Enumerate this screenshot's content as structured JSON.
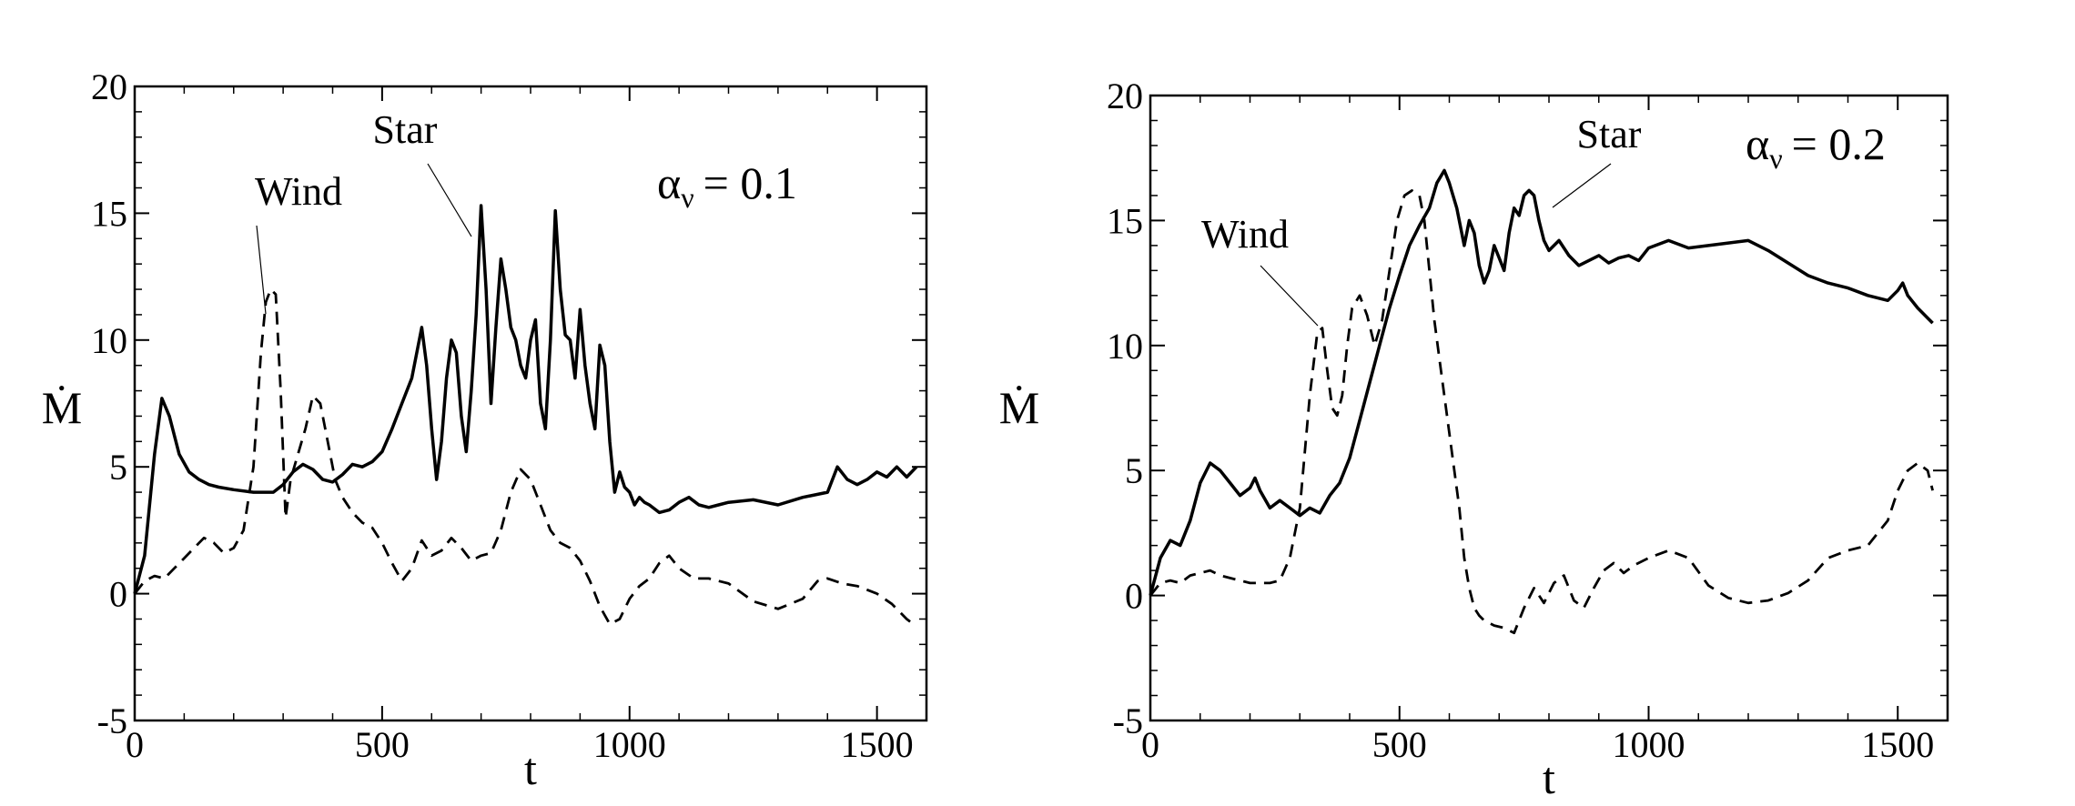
{
  "chart_data": [
    {
      "type": "line",
      "panel": "left",
      "xlabel": "t",
      "ylabel": "Ṁ",
      "xlim": [
        0,
        1600
      ],
      "ylim": [
        -5,
        20
      ],
      "xticks": [
        0,
        500,
        1000,
        1500
      ],
      "xtick_labels": [
        "0",
        "500",
        "1000",
        "1500"
      ],
      "yticks": [
        -5,
        0,
        5,
        10,
        15,
        20
      ],
      "ytick_labels": [
        "-5",
        "0",
        "5",
        "10",
        "15",
        "20"
      ],
      "parameter_label": {
        "symbol": "α",
        "subscript": "ν",
        "text": "=  0.1"
      },
      "grid": false,
      "series": [
        {
          "name": "Star",
          "style": "solid",
          "x": [
            0,
            20,
            40,
            55,
            70,
            90,
            110,
            130,
            150,
            170,
            200,
            240,
            280,
            300,
            320,
            340,
            360,
            380,
            400,
            420,
            440,
            460,
            480,
            500,
            520,
            540,
            560,
            580,
            590,
            600,
            610,
            620,
            630,
            640,
            650,
            660,
            670,
            680,
            690,
            700,
            710,
            720,
            730,
            740,
            750,
            760,
            770,
            780,
            790,
            800,
            810,
            820,
            830,
            840,
            850,
            860,
            870,
            880,
            890,
            900,
            910,
            920,
            930,
            940,
            950,
            960,
            970,
            980,
            990,
            1000,
            1010,
            1020,
            1030,
            1040,
            1060,
            1080,
            1100,
            1120,
            1140,
            1160,
            1180,
            1200,
            1250,
            1300,
            1350,
            1400,
            1420,
            1440,
            1460,
            1480,
            1500,
            1520,
            1540,
            1560,
            1580
          ],
          "y": [
            0,
            1.5,
            5.5,
            7.7,
            7.0,
            5.5,
            4.8,
            4.5,
            4.3,
            4.2,
            4.1,
            4.0,
            4.0,
            4.3,
            4.8,
            5.1,
            4.9,
            4.5,
            4.4,
            4.7,
            5.1,
            5.0,
            5.2,
            5.6,
            6.5,
            7.5,
            8.5,
            10.5,
            9.0,
            6.5,
            4.5,
            6.0,
            8.5,
            10.0,
            9.5,
            7.0,
            5.6,
            8.0,
            11.0,
            15.3,
            12.0,
            7.5,
            10.5,
            13.2,
            12.0,
            10.5,
            10.0,
            9.0,
            8.5,
            10.0,
            10.8,
            7.5,
            6.5,
            10.0,
            15.1,
            12.0,
            10.2,
            10.0,
            8.5,
            11.2,
            9.0,
            7.5,
            6.5,
            9.8,
            9.0,
            6.0,
            4.0,
            4.8,
            4.2,
            4.0,
            3.5,
            3.8,
            3.6,
            3.5,
            3.2,
            3.3,
            3.6,
            3.8,
            3.5,
            3.4,
            3.5,
            3.6,
            3.7,
            3.5,
            3.8,
            4.0,
            5.0,
            4.5,
            4.3,
            4.5,
            4.8,
            4.6,
            5.0,
            4.6,
            5.0
          ]
        },
        {
          "name": "Wind",
          "style": "dashed",
          "x": [
            0,
            20,
            40,
            60,
            80,
            100,
            120,
            140,
            160,
            180,
            200,
            220,
            240,
            255,
            265,
            275,
            285,
            295,
            305,
            315,
            330,
            345,
            360,
            375,
            390,
            405,
            420,
            440,
            460,
            480,
            500,
            520,
            540,
            560,
            580,
            600,
            620,
            640,
            660,
            680,
            700,
            720,
            740,
            760,
            780,
            800,
            820,
            840,
            860,
            880,
            900,
            920,
            940,
            960,
            980,
            1000,
            1020,
            1040,
            1060,
            1080,
            1100,
            1130,
            1160,
            1200,
            1250,
            1300,
            1350,
            1380,
            1400,
            1430,
            1460,
            1500,
            1530,
            1560,
            1580
          ],
          "y": [
            0,
            0.5,
            0.7,
            0.6,
            1.0,
            1.4,
            1.8,
            2.2,
            2.0,
            1.6,
            1.8,
            2.5,
            5.0,
            9.5,
            11.5,
            12.0,
            11.8,
            8.0,
            3.0,
            4.5,
            5.5,
            6.5,
            7.8,
            7.5,
            6.0,
            4.5,
            3.8,
            3.2,
            2.8,
            2.6,
            2.0,
            1.2,
            0.5,
            1.0,
            2.1,
            1.5,
            1.7,
            2.2,
            1.8,
            1.3,
            1.5,
            1.6,
            2.5,
            4.0,
            4.9,
            4.5,
            3.5,
            2.5,
            2.0,
            1.8,
            1.3,
            0.5,
            -0.5,
            -1.2,
            -1.0,
            -0.2,
            0.3,
            0.6,
            1.2,
            1.5,
            1.0,
            0.6,
            0.6,
            0.4,
            -0.3,
            -0.6,
            -0.2,
            0.5,
            0.6,
            0.4,
            0.3,
            0.0,
            -0.4,
            -1.0,
            -1.3
          ]
        }
      ],
      "annotations": [
        {
          "text": "Wind",
          "x": 250,
          "y": 15.2
        },
        {
          "text": "Star",
          "x": 555,
          "y": 18.2
        }
      ]
    },
    {
      "type": "line",
      "panel": "right",
      "xlabel": "t",
      "ylabel": "Ṁ",
      "xlim": [
        0,
        1600
      ],
      "ylim": [
        -5,
        20
      ],
      "xticks": [
        0,
        500,
        1000,
        1500
      ],
      "xtick_labels": [
        "0",
        "500",
        "1000",
        "1500"
      ],
      "yticks": [
        -5,
        0,
        5,
        10,
        15,
        20
      ],
      "ytick_labels": [
        "-5",
        "0",
        "5",
        "10",
        "15",
        "20"
      ],
      "parameter_label": {
        "symbol": "α",
        "subscript": "ν",
        "text": "= 0.2"
      },
      "grid": false,
      "series": [
        {
          "name": "Star",
          "style": "solid",
          "x": [
            0,
            20,
            40,
            60,
            80,
            100,
            120,
            140,
            160,
            180,
            200,
            210,
            220,
            240,
            260,
            280,
            300,
            320,
            340,
            360,
            380,
            400,
            420,
            440,
            460,
            480,
            500,
            520,
            540,
            560,
            575,
            590,
            600,
            615,
            630,
            640,
            650,
            660,
            670,
            680,
            690,
            700,
            710,
            720,
            730,
            740,
            750,
            760,
            770,
            780,
            790,
            800,
            820,
            840,
            860,
            880,
            900,
            920,
            940,
            960,
            980,
            1000,
            1040,
            1080,
            1120,
            1160,
            1200,
            1240,
            1280,
            1320,
            1360,
            1400,
            1440,
            1480,
            1500,
            1510,
            1520,
            1540,
            1560,
            1570
          ],
          "y": [
            0,
            1.5,
            2.2,
            2.0,
            3.0,
            4.5,
            5.3,
            5.0,
            4.5,
            4.0,
            4.3,
            4.7,
            4.2,
            3.5,
            3.8,
            3.5,
            3.2,
            3.5,
            3.3,
            4.0,
            4.5,
            5.5,
            7.0,
            8.5,
            10.0,
            11.5,
            12.8,
            14.0,
            14.8,
            15.5,
            16.5,
            17.0,
            16.5,
            15.5,
            14.0,
            15.0,
            14.5,
            13.2,
            12.5,
            13.0,
            14.0,
            13.5,
            13.0,
            14.5,
            15.5,
            15.2,
            16.0,
            16.2,
            16.0,
            15.0,
            14.2,
            13.8,
            14.2,
            13.6,
            13.2,
            13.4,
            13.6,
            13.3,
            13.5,
            13.6,
            13.4,
            13.9,
            14.2,
            13.9,
            14.0,
            14.1,
            14.2,
            13.8,
            13.3,
            12.8,
            12.5,
            12.3,
            12.0,
            11.8,
            12.2,
            12.5,
            12.0,
            11.5,
            11.1,
            10.9
          ]
        },
        {
          "name": "Wind",
          "style": "dashed",
          "x": [
            0,
            20,
            40,
            60,
            80,
            100,
            120,
            140,
            160,
            180,
            200,
            220,
            240,
            260,
            280,
            300,
            320,
            335,
            345,
            355,
            365,
            375,
            385,
            395,
            405,
            420,
            435,
            450,
            465,
            480,
            495,
            510,
            525,
            540,
            550,
            560,
            570,
            580,
            590,
            600,
            610,
            620,
            630,
            640,
            650,
            660,
            670,
            690,
            710,
            730,
            750,
            770,
            790,
            810,
            830,
            850,
            870,
            890,
            910,
            930,
            950,
            970,
            1000,
            1040,
            1080,
            1120,
            1160,
            1200,
            1240,
            1280,
            1320,
            1360,
            1400,
            1440,
            1480,
            1500,
            1520,
            1540,
            1560,
            1570
          ],
          "y": [
            0,
            0.5,
            0.6,
            0.5,
            0.8,
            0.9,
            1.0,
            0.8,
            0.7,
            0.6,
            0.5,
            0.5,
            0.5,
            0.6,
            1.5,
            3.5,
            8.0,
            10.5,
            10.7,
            9.0,
            7.5,
            7.2,
            8.0,
            10.0,
            11.5,
            12.0,
            11.2,
            10.0,
            11.0,
            13.0,
            15.0,
            16.0,
            16.2,
            16.0,
            15.0,
            13.0,
            11.0,
            9.5,
            8.0,
            6.5,
            5.0,
            3.5,
            1.5,
            0.3,
            -0.5,
            -0.8,
            -1.0,
            -1.2,
            -1.3,
            -1.5,
            -0.5,
            0.3,
            -0.3,
            0.5,
            0.8,
            -0.2,
            -0.5,
            0.3,
            1.0,
            1.3,
            0.9,
            1.2,
            1.5,
            1.8,
            1.5,
            0.4,
            -0.1,
            -0.3,
            -0.2,
            0.1,
            0.6,
            1.5,
            1.8,
            2.0,
            3.0,
            4.2,
            5.0,
            5.3,
            5.0,
            4.2
          ]
        }
      ],
      "annotations": [
        {
          "text": "Wind",
          "x": 210,
          "y": 14.2
        },
        {
          "text": "Star",
          "x": 820,
          "y": 18.5
        }
      ]
    }
  ]
}
